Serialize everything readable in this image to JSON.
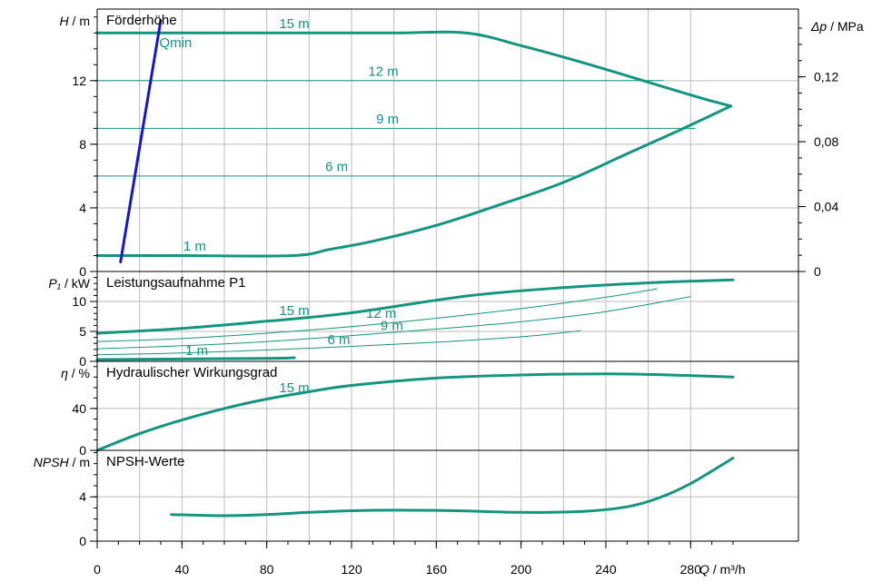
{
  "colors": {
    "curve": "#14957f",
    "qmin": "#1414d6",
    "grid": "#bdbdbd"
  },
  "chart_data": {
    "type": "line",
    "x_axis": {
      "label_var": "Q",
      "label_unit": " / m³/h",
      "range": [
        0,
        300
      ],
      "ticks": [
        0,
        40,
        80,
        120,
        160,
        200,
        240,
        280
      ],
      "grid_step": 20
    },
    "panels": [
      {
        "id": "head",
        "title": "Förderhöhe",
        "y_label_var": "H",
        "y_label_unit": " / m",
        "y_range": [
          0,
          16.5
        ],
        "y_ticks": [
          0,
          4,
          8,
          12
        ],
        "y_grid": [
          4,
          8,
          12
        ],
        "y_minor_step": 1,
        "right_axis": {
          "label_var": "Δp",
          "label_unit": " / MPa",
          "ticks": [
            {
              "value": 0,
              "label": "0"
            },
            {
              "value": 4.08,
              "label": "0,04"
            },
            {
              "value": 8.16,
              "label": "0,08"
            },
            {
              "value": 12.24,
              "label": "0,12"
            }
          ]
        },
        "series": [
          {
            "name": "15 m",
            "width": 3,
            "points": [
              [
                0,
                15
              ],
              [
                20,
                15
              ],
              [
                60,
                15
              ],
              [
                100,
                15
              ],
              [
                140,
                15
              ],
              [
                174,
                15
              ],
              [
                200,
                14.2
              ],
              [
                230,
                13.1
              ],
              [
                260,
                11.9
              ],
              [
                285,
                10.9
              ],
              [
                299,
                10.4
              ]
            ]
          },
          {
            "name": "12 m",
            "width": 1,
            "points": [
              [
                0,
                12
              ],
              [
                100,
                12
              ],
              [
                200,
                12
              ],
              [
                267,
                12
              ]
            ]
          },
          {
            "name": "9 m",
            "width": 1,
            "points": [
              [
                0,
                9
              ],
              [
                100,
                9
              ],
              [
                200,
                9
              ],
              [
                282,
                9
              ]
            ]
          },
          {
            "name": "6 m",
            "width": 1,
            "points": [
              [
                0,
                6
              ],
              [
                100,
                6
              ],
              [
                200,
                6
              ],
              [
                225,
                6
              ]
            ]
          },
          {
            "name": "1 m",
            "width": 3,
            "points": [
              [
                0,
                1
              ],
              [
                40,
                1
              ],
              [
                92,
                1
              ],
              [
                110,
                1.4
              ],
              [
                130,
                1.9
              ],
              [
                160,
                2.9
              ],
              [
                190,
                4.2
              ],
              [
                220,
                5.6
              ],
              [
                250,
                7.4
              ],
              [
                275,
                8.9
              ],
              [
                299,
                10.4
              ]
            ]
          },
          {
            "name": "Qmin",
            "width": 3,
            "color": "qmin",
            "show_label": false,
            "points": [
              [
                11,
                0.6
              ],
              [
                30,
                15.8
              ]
            ]
          }
        ],
        "labels": [
          {
            "text": "15 m",
            "x": 93,
            "y": 15.6
          },
          {
            "text": "Qmin",
            "x": 37,
            "y": 14.4
          },
          {
            "text": "12 m",
            "x": 135,
            "y": 12.6
          },
          {
            "text": "9 m",
            "x": 137,
            "y": 9.6
          },
          {
            "text": "6 m",
            "x": 113,
            "y": 6.6
          },
          {
            "text": "1 m",
            "x": 46,
            "y": 1.6
          }
        ]
      },
      {
        "id": "power",
        "title": "Leistungsaufnahme P1",
        "y_label_var": "P₁",
        "y_label_unit": " / kW",
        "y_range": [
          0,
          15
        ],
        "y_ticks": [
          0,
          5,
          10
        ],
        "y_grid": [
          5,
          10
        ],
        "y_minor_step": 1,
        "series": [
          {
            "name": "15 m",
            "width": 3,
            "points": [
              [
                0,
                4.7
              ],
              [
                40,
                5.5
              ],
              [
                80,
                6.7
              ],
              [
                120,
                8.1
              ],
              [
                174,
                10.9
              ],
              [
                220,
                12.3
              ],
              [
                260,
                13.1
              ],
              [
                300,
                13.6
              ]
            ]
          },
          {
            "name": "12 m",
            "width": 1,
            "points": [
              [
                0,
                3.3
              ],
              [
                40,
                3.8
              ],
              [
                80,
                4.7
              ],
              [
                120,
                5.8
              ],
              [
                160,
                7.2
              ],
              [
                200,
                8.8
              ],
              [
                240,
                10.7
              ],
              [
                264,
                12.1
              ]
            ]
          },
          {
            "name": "9 m",
            "width": 1,
            "points": [
              [
                0,
                2.1
              ],
              [
                40,
                2.6
              ],
              [
                80,
                3.3
              ],
              [
                120,
                4.3
              ],
              [
                160,
                5.4
              ],
              [
                200,
                6.6
              ],
              [
                240,
                8.3
              ],
              [
                280,
                10.8
              ]
            ]
          },
          {
            "name": "6 m",
            "width": 1,
            "points": [
              [
                0,
                1.1
              ],
              [
                40,
                1.4
              ],
              [
                80,
                1.9
              ],
              [
                120,
                2.5
              ],
              [
                160,
                3.2
              ],
              [
                200,
                4.1
              ],
              [
                228,
                5.1
              ]
            ]
          },
          {
            "name": "1 m",
            "width": 3,
            "points": [
              [
                0,
                0.3
              ],
              [
                40,
                0.4
              ],
              [
                80,
                0.5
              ],
              [
                93,
                0.6
              ]
            ]
          }
        ],
        "labels": [
          {
            "text": "15 m",
            "x": 93,
            "y": 8.5
          },
          {
            "text": "12 m",
            "x": 134,
            "y": 8.0
          },
          {
            "text": "9 m",
            "x": 139,
            "y": 6.0
          },
          {
            "text": "6 m",
            "x": 114,
            "y": 3.6
          },
          {
            "text": "1 m",
            "x": 47,
            "y": 1.8
          }
        ]
      },
      {
        "id": "eff",
        "title": "Hydraulischer Wirkungsgrad",
        "y_label_var": "η",
        "y_label_unit": " / %",
        "y_range": [
          0,
          85
        ],
        "y_ticks": [
          0,
          40
        ],
        "y_grid": [
          40
        ],
        "y_minor_step": 10,
        "series": [
          {
            "name": "15 m",
            "width": 3,
            "points": [
              [
                0,
                0
              ],
              [
                20,
                16
              ],
              [
                40,
                29
              ],
              [
                60,
                40
              ],
              [
                80,
                49
              ],
              [
                100,
                56
              ],
              [
                120,
                62
              ],
              [
                160,
                69
              ],
              [
                200,
                72
              ],
              [
                240,
                73
              ],
              [
                270,
                72
              ],
              [
                300,
                70
              ]
            ]
          }
        ],
        "labels": [
          {
            "text": "15 m",
            "x": 93,
            "y": 60
          }
        ]
      },
      {
        "id": "npsh",
        "title": "NPSH-Werte",
        "y_label_var": "NPSH",
        "y_label_unit": " / m",
        "y_range": [
          0,
          8.2
        ],
        "y_ticks": [
          0,
          4
        ],
        "y_grid": [
          4
        ],
        "y_minor_step": 1,
        "series": [
          {
            "name": "NPSH",
            "width": 3,
            "points": [
              [
                35,
                2.4
              ],
              [
                60,
                2.3
              ],
              [
                80,
                2.4
              ],
              [
                100,
                2.6
              ],
              [
                120,
                2.75
              ],
              [
                140,
                2.8
              ],
              [
                170,
                2.75
              ],
              [
                200,
                2.6
              ],
              [
                230,
                2.7
              ],
              [
                250,
                3.1
              ],
              [
                265,
                3.9
              ],
              [
                280,
                5.2
              ],
              [
                300,
                7.5
              ]
            ]
          }
        ],
        "labels": []
      }
    ]
  }
}
